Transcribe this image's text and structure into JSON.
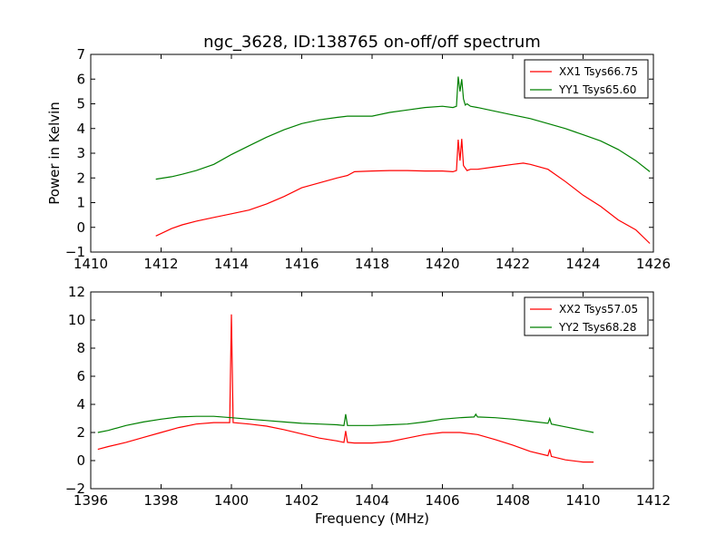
{
  "chart_data": [
    {
      "type": "line",
      "title": "ngc_3628, ID:138765 on-off/off spectrum",
      "xlabel": "",
      "ylabel": "Power in Kelvin",
      "xlim": [
        1410,
        1426
      ],
      "ylim": [
        -1,
        7
      ],
      "xticks": [
        1410,
        1412,
        1414,
        1416,
        1418,
        1420,
        1422,
        1424,
        1426
      ],
      "yticks": [
        -1,
        0,
        1,
        2,
        3,
        4,
        5,
        6,
        7
      ],
      "legend": "top-right",
      "series": [
        {
          "name": "XX1 Tsys66.75",
          "color": "#ff0000",
          "x": [
            1411.85,
            1412.3,
            1412.6,
            1413.0,
            1413.5,
            1414.0,
            1414.5,
            1415.0,
            1415.5,
            1416.0,
            1416.5,
            1417.0,
            1417.3,
            1417.5,
            1418.0,
            1418.5,
            1419.0,
            1419.5,
            1420.0,
            1420.3,
            1420.4,
            1420.45,
            1420.5,
            1420.55,
            1420.6,
            1420.65,
            1420.7,
            1420.8,
            1421.0,
            1421.5,
            1422.0,
            1422.3,
            1422.5,
            1423.0,
            1423.5,
            1424.0,
            1424.5,
            1425.0,
            1425.5,
            1425.9
          ],
          "y": [
            -0.35,
            -0.05,
            0.1,
            0.25,
            0.4,
            0.55,
            0.7,
            0.95,
            1.25,
            1.6,
            1.8,
            2.0,
            2.1,
            2.25,
            2.28,
            2.3,
            2.3,
            2.28,
            2.28,
            2.25,
            2.3,
            3.55,
            2.7,
            3.58,
            2.5,
            2.4,
            2.3,
            2.35,
            2.35,
            2.45,
            2.55,
            2.6,
            2.55,
            2.35,
            1.85,
            1.3,
            0.85,
            0.3,
            -0.1,
            -0.65
          ]
        },
        {
          "name": "YY1 Tsys65.60",
          "color": "#008000",
          "x": [
            1411.85,
            1412.3,
            1412.6,
            1413.0,
            1413.5,
            1414.0,
            1414.5,
            1415.0,
            1415.5,
            1416.0,
            1416.5,
            1417.0,
            1417.3,
            1417.5,
            1418.0,
            1418.5,
            1419.0,
            1419.5,
            1420.0,
            1420.3,
            1420.4,
            1420.45,
            1420.5,
            1420.55,
            1420.6,
            1420.65,
            1420.7,
            1420.8,
            1421.0,
            1421.5,
            1422.0,
            1422.5,
            1423.0,
            1423.5,
            1424.0,
            1424.5,
            1425.0,
            1425.5,
            1425.9
          ],
          "y": [
            1.95,
            2.05,
            2.15,
            2.3,
            2.55,
            2.95,
            3.3,
            3.65,
            3.95,
            4.2,
            4.35,
            4.45,
            4.5,
            4.5,
            4.5,
            4.65,
            4.75,
            4.85,
            4.9,
            4.85,
            4.9,
            6.1,
            5.5,
            6.0,
            5.2,
            4.95,
            5.0,
            4.9,
            4.85,
            4.7,
            4.55,
            4.4,
            4.2,
            4.0,
            3.75,
            3.5,
            3.15,
            2.7,
            2.25
          ]
        }
      ]
    },
    {
      "type": "line",
      "title": "",
      "xlabel": "Frequency (MHz)",
      "ylabel": "",
      "xlim": [
        1396,
        1412
      ],
      "ylim": [
        -2,
        12
      ],
      "xticks": [
        1396,
        1398,
        1400,
        1402,
        1404,
        1406,
        1408,
        1410,
        1412
      ],
      "yticks": [
        -2,
        0,
        2,
        4,
        6,
        8,
        10,
        12
      ],
      "legend": "top-right",
      "series": [
        {
          "name": "XX2 Tsys57.05",
          "color": "#ff0000",
          "x": [
            1396.2,
            1396.5,
            1397.0,
            1397.5,
            1398.0,
            1398.5,
            1399.0,
            1399.5,
            1399.95,
            1400.0,
            1400.05,
            1400.5,
            1401.0,
            1401.5,
            1402.0,
            1402.5,
            1403.0,
            1403.2,
            1403.25,
            1403.3,
            1403.5,
            1404.0,
            1404.5,
            1405.0,
            1405.5,
            1406.0,
            1406.5,
            1407.0,
            1407.5,
            1408.0,
            1408.5,
            1409.0,
            1409.05,
            1409.1,
            1409.5,
            1410.0,
            1410.3
          ],
          "y": [
            0.8,
            1.0,
            1.3,
            1.65,
            2.0,
            2.35,
            2.6,
            2.7,
            2.7,
            10.4,
            2.7,
            2.6,
            2.45,
            2.2,
            1.9,
            1.6,
            1.4,
            1.3,
            2.1,
            1.3,
            1.25,
            1.25,
            1.35,
            1.6,
            1.85,
            2.0,
            2.0,
            1.85,
            1.5,
            1.1,
            0.65,
            0.35,
            0.8,
            0.3,
            0.05,
            -0.1,
            -0.1
          ]
        },
        {
          "name": "YY2 Tsys68.28",
          "color": "#008000",
          "x": [
            1396.2,
            1396.5,
            1397.0,
            1397.5,
            1398.0,
            1398.5,
            1399.0,
            1399.5,
            1400.0,
            1400.5,
            1401.0,
            1401.5,
            1402.0,
            1402.5,
            1403.0,
            1403.2,
            1403.25,
            1403.3,
            1403.5,
            1404.0,
            1404.5,
            1405.0,
            1405.5,
            1406.0,
            1406.5,
            1406.9,
            1406.95,
            1407.0,
            1407.5,
            1408.0,
            1408.5,
            1409.0,
            1409.05,
            1409.1,
            1409.5,
            1410.0,
            1410.3
          ],
          "y": [
            2.0,
            2.15,
            2.5,
            2.75,
            2.95,
            3.1,
            3.15,
            3.15,
            3.05,
            2.95,
            2.85,
            2.75,
            2.65,
            2.6,
            2.55,
            2.5,
            3.3,
            2.5,
            2.5,
            2.5,
            2.55,
            2.6,
            2.75,
            2.95,
            3.05,
            3.1,
            3.3,
            3.1,
            3.05,
            2.95,
            2.8,
            2.65,
            3.0,
            2.6,
            2.4,
            2.15,
            2.0
          ]
        }
      ]
    }
  ]
}
